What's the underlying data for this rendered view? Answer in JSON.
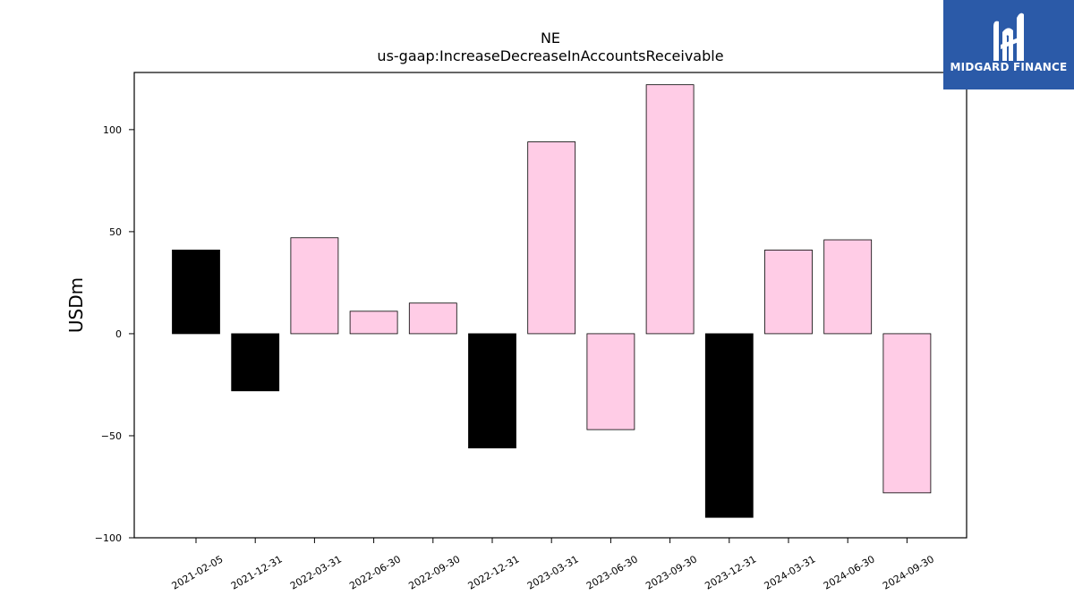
{
  "chart_data": {
    "type": "bar",
    "title": "NE",
    "subtitle": "us-gaap:IncreaseDecreaseInAccountsReceivable",
    "ylabel": "USDm",
    "xlabel": "",
    "ylim": [
      -100,
      128
    ],
    "yticks": [
      -100,
      -50,
      0,
      50,
      100
    ],
    "ytick_labels": [
      "−100",
      "−50",
      "0",
      "50",
      "100"
    ],
    "categories": [
      "2021-02-05",
      "2021-12-31",
      "2022-03-31",
      "2022-06-30",
      "2022-09-30",
      "2022-12-31",
      "2023-03-31",
      "2023-06-30",
      "2023-09-30",
      "2023-12-31",
      "2024-03-31",
      "2024-06-30",
      "2024-09-30"
    ],
    "values": [
      41,
      -28,
      47,
      11,
      15,
      -56,
      94,
      -47,
      122,
      -90,
      41,
      46,
      -78
    ],
    "colors": [
      "#000000",
      "#000000",
      "#ffcce6",
      "#ffcce6",
      "#ffcce6",
      "#000000",
      "#ffcce6",
      "#ffcce6",
      "#ffcce6",
      "#000000",
      "#ffcce6",
      "#ffcce6",
      "#ffcce6"
    ],
    "edge_color": "#000000",
    "grid": false
  },
  "logo": {
    "text": "MIDGARD FINANCE",
    "background": "#2b5aa8"
  }
}
